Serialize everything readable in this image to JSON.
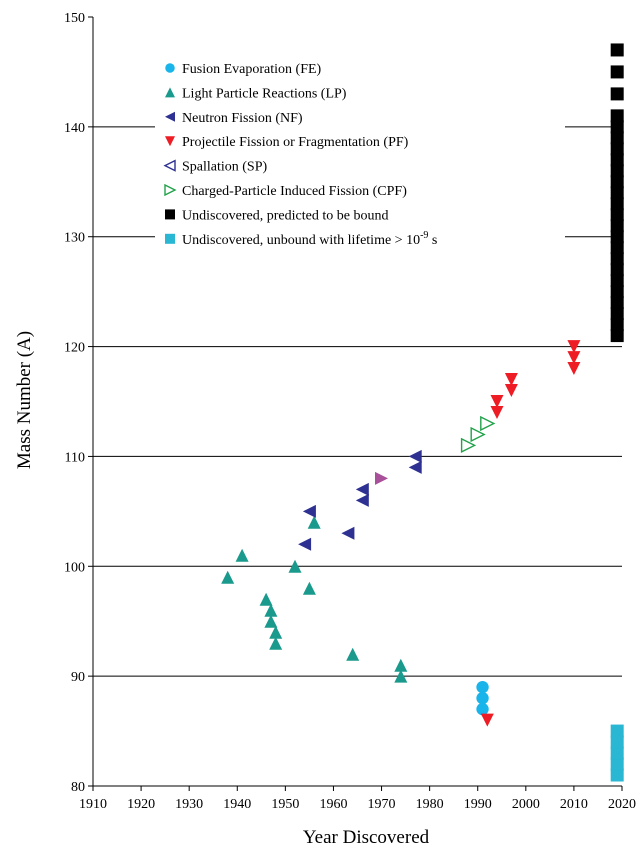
{
  "chart_data": {
    "type": "scatter",
    "xlabel": "Year Discovered",
    "ylabel": "Mass Number (A)",
    "xlim": [
      1910,
      2020
    ],
    "ylim": [
      80,
      150
    ],
    "x_ticks": [
      "1910",
      "1920",
      "1930",
      "1940",
      "1950",
      "1960",
      "1970",
      "1980",
      "1990",
      "2000",
      "2010",
      "2020"
    ],
    "y_ticks": [
      "80",
      "90",
      "100",
      "110",
      "120",
      "130",
      "140",
      "150"
    ],
    "grid": "horizontal",
    "legend_position": "top-left",
    "series": [
      {
        "name": "Fusion Evaporation (FE)",
        "marker": "circle",
        "color": "#18b4ea",
        "points": [
          [
            1991,
            87
          ],
          [
            1991,
            88
          ],
          [
            1991,
            89
          ]
        ]
      },
      {
        "name": "Light Particle Reactions (LP)",
        "marker": "triangle-up",
        "color": "#1a9a8c",
        "points": [
          [
            1938,
            99
          ],
          [
            1941,
            101
          ],
          [
            1946,
            97
          ],
          [
            1947,
            96
          ],
          [
            1947,
            95
          ],
          [
            1948,
            94
          ],
          [
            1948,
            93
          ],
          [
            1952,
            100
          ],
          [
            1955,
            98
          ],
          [
            1956,
            104
          ],
          [
            1964,
            92
          ],
          [
            1974,
            91
          ],
          [
            1974,
            90
          ]
        ]
      },
      {
        "name": "Neutron Fission (NF)",
        "marker": "triangle-left",
        "color": "#2e3192",
        "points": [
          [
            1954,
            102
          ],
          [
            1955,
            105
          ],
          [
            1963,
            103
          ],
          [
            1966,
            107
          ],
          [
            1966,
            106
          ],
          [
            1977,
            110
          ],
          [
            1977,
            109
          ]
        ]
      },
      {
        "name": "Projectile Fission or Fragmentation (PF)",
        "marker": "triangle-down",
        "color": "#ee1c25",
        "points": [
          [
            1992,
            86
          ],
          [
            1994,
            115
          ],
          [
            1994,
            114
          ],
          [
            1997,
            117
          ],
          [
            1997,
            116
          ],
          [
            2010,
            120
          ],
          [
            2010,
            119
          ],
          [
            2010,
            118
          ]
        ]
      },
      {
        "name": "Spallation (SP)",
        "marker": "triangle-left-open",
        "color": "#2e3192",
        "points": []
      },
      {
        "name": "Charged-Particle Induced Fission (CPF)",
        "marker": "triangle-right-open",
        "color": "#22a24a",
        "points": [
          [
            1988,
            111
          ],
          [
            1990,
            112
          ],
          [
            1992,
            113
          ]
        ]
      },
      {
        "name": "Undiscovered, predicted to be bound",
        "marker": "square",
        "color": "#000000",
        "points": [
          [
            2019,
            121
          ],
          [
            2019,
            122
          ],
          [
            2019,
            123
          ],
          [
            2019,
            124
          ],
          [
            2019,
            125
          ],
          [
            2019,
            126
          ],
          [
            2019,
            127
          ],
          [
            2019,
            128
          ],
          [
            2019,
            129
          ],
          [
            2019,
            130
          ],
          [
            2019,
            131
          ],
          [
            2019,
            132
          ],
          [
            2019,
            133
          ],
          [
            2019,
            134
          ],
          [
            2019,
            135
          ],
          [
            2019,
            136
          ],
          [
            2019,
            137
          ],
          [
            2019,
            138
          ],
          [
            2019,
            139
          ],
          [
            2019,
            140
          ],
          [
            2019,
            141
          ],
          [
            2019,
            143
          ],
          [
            2019,
            145
          ],
          [
            2019,
            147
          ]
        ]
      },
      {
        "name": "Undiscovered, unbound with lifetime > 10",
        "name_superscript": "-9",
        "name_suffix": " s",
        "marker": "square",
        "color": "#29b7d3",
        "points": [
          [
            2019,
            81
          ],
          [
            2019,
            82
          ],
          [
            2019,
            83
          ],
          [
            2019,
            84
          ],
          [
            2019,
            85
          ]
        ]
      }
    ],
    "extra_points": [
      {
        "marker": "triangle-right",
        "color": "#a8509a",
        "points": [
          [
            1970,
            108
          ]
        ]
      }
    ]
  }
}
